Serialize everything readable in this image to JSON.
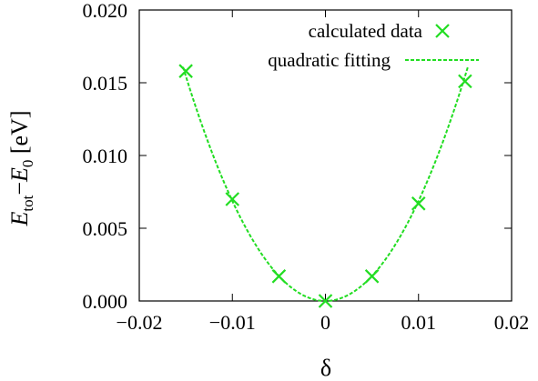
{
  "chart_data": {
    "type": "scatter",
    "xlabel": "δ",
    "ylabel_parts": {
      "e1": "E",
      "s1": "tot",
      "minus": "−",
      "e2": "E",
      "s2": "0",
      "unit": " [eV]"
    },
    "xlim": [
      -0.02,
      0.02
    ],
    "ylim": [
      0.0,
      0.02
    ],
    "xticks": [
      -0.02,
      -0.01,
      0,
      0.01,
      0.02
    ],
    "xtick_labels": [
      "−0.02",
      "−0.01",
      "0",
      "0.01",
      "0.02"
    ],
    "yticks": [
      0.0,
      0.005,
      0.01,
      0.015,
      0.02
    ],
    "ytick_labels": [
      "0.000",
      "0.005",
      "0.010",
      "0.015",
      "0.020"
    ],
    "legend_position": "top-right",
    "colors": {
      "series": "#22dd22",
      "axis": "#000000"
    },
    "series": [
      {
        "name": "calculated data",
        "marker": "x",
        "x": [
          -0.015,
          -0.01,
          -0.005,
          0.0,
          0.005,
          0.01,
          0.015
        ],
        "y": [
          0.0158,
          0.007,
          0.0017,
          0.0,
          0.0017,
          0.0067,
          0.0151
        ]
      },
      {
        "name": "quadratic fitting",
        "style": "dashed-line",
        "function": "a*x^2",
        "a": 68.7,
        "x_range": [
          -0.0153,
          0.0153
        ]
      }
    ]
  }
}
